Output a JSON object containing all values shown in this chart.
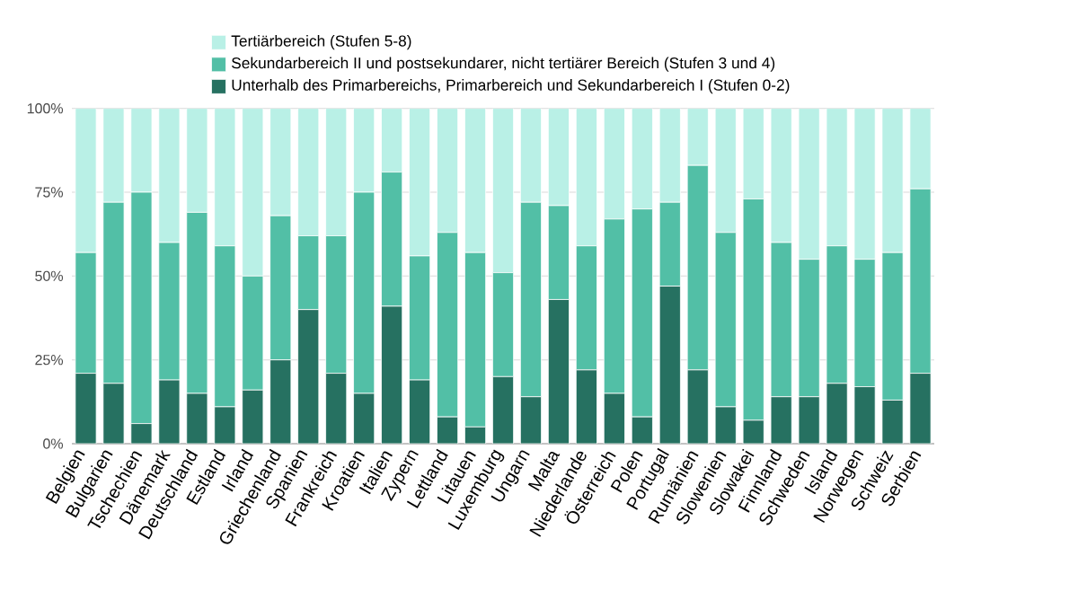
{
  "chart_data": {
    "type": "bar",
    "stacked": true,
    "categories": [
      "Belgien",
      "Bulgarien",
      "Tschechien",
      "Dänemark",
      "Deutschland",
      "Estland",
      "Irland",
      "Griechenland",
      "Spanien",
      "Frankreich",
      "Kroatien",
      "Italien",
      "Zypern",
      "Lettland",
      "Litauen",
      "Luxemburg",
      "Ungarn",
      "Malta",
      "Niederlande",
      "Österreich",
      "Polen",
      "Portugal",
      "Rumänien",
      "Slowenien",
      "Slowakei",
      "Finnland",
      "Schweden",
      "Island",
      "Norwegen",
      "Schweiz",
      "Serbien"
    ],
    "series": [
      {
        "name": "Unterhalb des Primarbereichs, Primarbereich und Sekundarbereich I (Stufen 0-2)",
        "color": "#267161",
        "values": [
          21,
          18,
          6,
          19,
          15,
          11,
          16,
          25,
          40,
          21,
          15,
          41,
          19,
          8,
          5,
          20,
          14,
          43,
          22,
          15,
          8,
          47,
          22,
          11,
          7,
          14,
          14,
          18,
          17,
          13,
          21
        ]
      },
      {
        "name": "Sekundarbereich II und postsekundarer, nicht tertiärer Bereich (Stufen 3 und 4)",
        "color": "#52bfa6",
        "values": [
          36,
          54,
          69,
          41,
          54,
          48,
          34,
          43,
          22,
          41,
          60,
          40,
          37,
          55,
          52,
          31,
          58,
          28,
          37,
          52,
          62,
          25,
          61,
          52,
          66,
          46,
          41,
          41,
          38,
          44,
          55
        ]
      },
      {
        "name": "Tertiärbereich (Stufen 5-8)",
        "color": "#b9f0e6",
        "values": [
          43,
          28,
          25,
          40,
          31,
          41,
          50,
          32,
          38,
          38,
          25,
          19,
          44,
          37,
          43,
          49,
          28,
          29,
          41,
          33,
          30,
          28,
          17,
          37,
          27,
          40,
          45,
          41,
          45,
          43,
          24
        ]
      }
    ],
    "ylim": [
      0,
      100
    ],
    "yticks": [
      {
        "value": 0,
        "label": "0%"
      },
      {
        "value": 25,
        "label": "25%"
      },
      {
        "value": 50,
        "label": "50%"
      },
      {
        "value": 75,
        "label": "75%"
      },
      {
        "value": 100,
        "label": "100%"
      }
    ],
    "grid": "y",
    "legend": "top"
  }
}
